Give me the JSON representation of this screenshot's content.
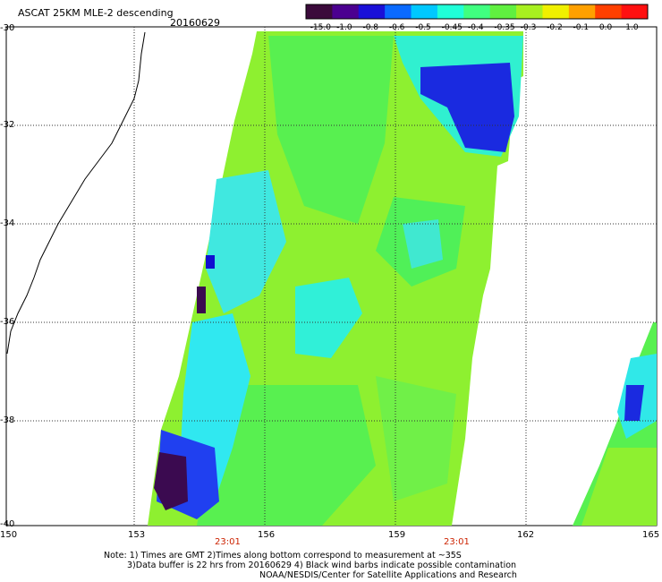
{
  "header": {
    "title": "ASCAT 25KM MLE-2 descending",
    "date": "20160629"
  },
  "colorbar": {
    "labels": [
      "-15.0",
      "-1.0",
      "-0.8",
      "-0.6",
      "-0.5",
      "-0.45",
      "-0.4",
      "-0.35",
      "-0.3",
      "-0.2",
      "-0.1",
      "0.0",
      "1.0"
    ],
    "colors": [
      "#3b0a3b",
      "#4b0090",
      "#1a10d8",
      "#0a6aff",
      "#00c8ff",
      "#20ffd8",
      "#40ff80",
      "#60f040",
      "#a8f020",
      "#f0f000",
      "#ffa000",
      "#ff4000",
      "#ff1010"
    ]
  },
  "axes": {
    "x_ticks": [
      "150",
      "153",
      "156",
      "159",
      "162",
      "165"
    ],
    "y_ticks": [
      "-30",
      "-32",
      "-34",
      "-36",
      "-38",
      "-40"
    ]
  },
  "times": [
    "23:01",
    "23:01"
  ],
  "notes": {
    "line1": "Note: 1) Times are GMT 2)Times along bottom correspond to measurement at ~35S",
    "line2": "3)Data buffer is 22 hrs from 20160629 4) Black wind barbs indicate possible contamination",
    "line3": "NOAA/NESDIS/Center for Satellite Applications and Research"
  }
}
